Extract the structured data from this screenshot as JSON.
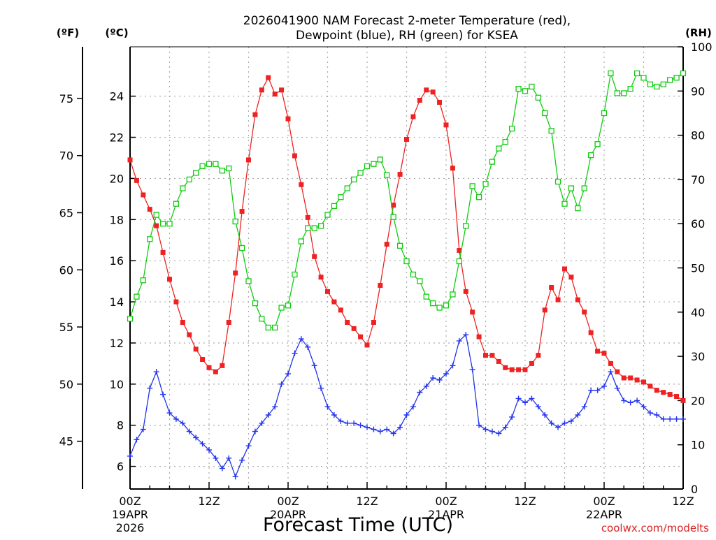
{
  "chart_data": {
    "type": "line",
    "title_line1": "2026041900 NAM Forecast 2-meter Temperature (red),",
    "title_line2": "Dewpoint (blue), RH (green) for KSEA",
    "xlabel": "Forecast Time (UTC)",
    "credit": "coolwx.com/modelts",
    "unit_labels": {
      "fahrenheit": "(ºF)",
      "celsius": "(ºC)",
      "rh": "(RH)"
    },
    "x_axis": {
      "min": 0,
      "max": 84,
      "ticks": [
        {
          "x": 0,
          "label": "00Z",
          "date": "19APR",
          "year": "2026"
        },
        {
          "x": 12,
          "label": "12Z"
        },
        {
          "x": 24,
          "label": "00Z",
          "date": "20APR"
        },
        {
          "x": 36,
          "label": "12Z"
        },
        {
          "x": 48,
          "label": "00Z",
          "date": "21APR"
        },
        {
          "x": 60,
          "label": "12Z"
        },
        {
          "x": 72,
          "label": "00Z",
          "date": "22APR"
        },
        {
          "x": 84,
          "label": "12Z"
        }
      ]
    },
    "y_celsius": {
      "min": 4.9,
      "max": 26.4,
      "ticks": [
        6,
        8,
        10,
        12,
        14,
        16,
        18,
        20,
        22,
        24
      ]
    },
    "y_fahrenheit": {
      "ticks": [
        45,
        50,
        55,
        60,
        65,
        70,
        75
      ]
    },
    "y_rh": {
      "min": 0,
      "max": 100,
      "ticks": [
        0,
        10,
        20,
        30,
        40,
        50,
        60,
        70,
        80,
        90,
        100
      ]
    },
    "grid": true,
    "colors": {
      "temperature": "#ee2222",
      "dewpoint": "#2233ee",
      "rh": "#11cc11",
      "credit": "#dd2222",
      "grid": "#aaaaaa"
    },
    "series": [
      {
        "key": "temperature",
        "axis": "celsius",
        "x": [
          0,
          1,
          2,
          3,
          4,
          5,
          6,
          7,
          8,
          9,
          10,
          11,
          12,
          13,
          14,
          15,
          16,
          17,
          18,
          19,
          20,
          21,
          22,
          23,
          24,
          25,
          26,
          27,
          28,
          29,
          30,
          31,
          32,
          33,
          34,
          35,
          36,
          37,
          38,
          39,
          40,
          41,
          42,
          43,
          44,
          45,
          46,
          47,
          48,
          49,
          50,
          51,
          52,
          53,
          54,
          55,
          56,
          57,
          58,
          59,
          60,
          61,
          62,
          63,
          64,
          65,
          66,
          67,
          68,
          69,
          70,
          71,
          72,
          73,
          74,
          75,
          76,
          77,
          78,
          79,
          80,
          81,
          82,
          83,
          84
        ],
        "values": [
          20.9,
          19.9,
          19.2,
          18.5,
          17.7,
          16.4,
          15.1,
          14.0,
          13.0,
          12.4,
          11.7,
          11.2,
          10.8,
          10.6,
          10.9,
          13.0,
          15.4,
          18.4,
          20.9,
          23.1,
          24.3,
          24.9,
          24.1,
          24.3,
          22.9,
          21.1,
          19.7,
          18.1,
          16.2,
          15.2,
          14.5,
          14.0,
          13.6,
          13.0,
          12.7,
          12.3,
          11.9,
          13.0,
          14.8,
          16.8,
          18.7,
          20.2,
          21.9,
          23.0,
          23.8,
          24.3,
          24.2,
          23.7,
          22.6,
          20.5,
          16.5,
          14.5,
          13.5,
          12.3,
          11.4,
          11.4,
          11.1,
          10.8,
          10.7,
          10.7,
          10.7,
          11.0,
          11.4,
          13.6,
          14.7,
          14.1,
          15.6,
          15.2,
          14.1,
          13.5,
          12.5,
          11.6,
          11.5,
          11.0,
          10.6,
          10.3,
          10.3,
          10.2,
          10.1,
          9.9,
          9.7,
          9.6,
          9.5,
          9.4,
          9.2
        ]
      },
      {
        "key": "dewpoint",
        "axis": "celsius",
        "x": [
          0,
          1,
          2,
          3,
          4,
          5,
          6,
          7,
          8,
          9,
          10,
          11,
          12,
          13,
          14,
          15,
          16,
          17,
          18,
          19,
          20,
          21,
          22,
          23,
          24,
          25,
          26,
          27,
          28,
          29,
          30,
          31,
          32,
          33,
          34,
          35,
          36,
          37,
          38,
          39,
          40,
          41,
          42,
          43,
          44,
          45,
          46,
          47,
          48,
          49,
          50,
          51,
          52,
          53,
          54,
          55,
          56,
          57,
          58,
          59,
          60,
          61,
          62,
          63,
          64,
          65,
          66,
          67,
          68,
          69,
          70,
          71,
          72,
          73,
          74,
          75,
          76,
          77,
          78,
          79,
          80,
          81,
          82,
          83,
          84
        ],
        "values": [
          6.5,
          7.3,
          7.8,
          9.8,
          10.6,
          9.5,
          8.6,
          8.3,
          8.1,
          7.7,
          7.4,
          7.1,
          6.8,
          6.4,
          5.9,
          6.4,
          5.5,
          6.3,
          7.0,
          7.7,
          8.1,
          8.5,
          8.9,
          10.0,
          10.5,
          11.5,
          12.2,
          11.8,
          10.9,
          9.8,
          8.9,
          8.5,
          8.2,
          8.1,
          8.1,
          8.0,
          7.9,
          7.8,
          7.7,
          7.8,
          7.6,
          7.9,
          8.5,
          8.9,
          9.6,
          9.9,
          10.3,
          10.2,
          10.5,
          10.9,
          12.1,
          12.4,
          10.7,
          8.0,
          7.8,
          7.7,
          7.6,
          7.9,
          8.4,
          9.3,
          9.1,
          9.3,
          8.9,
          8.5,
          8.1,
          7.9,
          8.1,
          8.2,
          8.5,
          8.9,
          9.7,
          9.7,
          9.9,
          10.6,
          9.8,
          9.2,
          9.1,
          9.2,
          8.9,
          8.6,
          8.5,
          8.3,
          8.3,
          8.3,
          8.3
        ]
      },
      {
        "key": "rh",
        "axis": "rh",
        "x": [
          0,
          1,
          2,
          3,
          4,
          5,
          6,
          7,
          8,
          9,
          10,
          11,
          12,
          13,
          14,
          15,
          16,
          17,
          18,
          19,
          20,
          21,
          22,
          23,
          24,
          25,
          26,
          27,
          28,
          29,
          30,
          31,
          32,
          33,
          34,
          35,
          36,
          37,
          38,
          39,
          40,
          41,
          42,
          43,
          44,
          45,
          46,
          47,
          48,
          49,
          50,
          51,
          52,
          53,
          54,
          55,
          56,
          57,
          58,
          59,
          60,
          61,
          62,
          63,
          64,
          65,
          66,
          67,
          68,
          69,
          70,
          71,
          72,
          73,
          74,
          75,
          76,
          77,
          78,
          79,
          80,
          81,
          82,
          83,
          84
        ],
        "values": [
          38.5,
          43.5,
          47.2,
          56.5,
          62,
          60,
          60,
          64.5,
          68,
          70,
          71.5,
          73,
          73.5,
          73.5,
          72,
          72.5,
          60.5,
          54.5,
          47,
          42,
          38.5,
          36.5,
          36.5,
          41,
          41.5,
          48.5,
          56,
          59,
          59,
          59.5,
          62,
          64,
          66,
          68,
          70,
          71.5,
          73,
          73.5,
          74.5,
          71,
          61.5,
          55,
          51.5,
          48.5,
          47,
          43.5,
          42,
          41,
          41.5,
          44,
          51.5,
          59.5,
          68.5,
          66,
          69,
          74,
          77,
          78.5,
          81.5,
          90.5,
          90,
          91,
          88.5,
          85,
          81,
          69.5,
          64.5,
          68,
          63.5,
          68,
          75.5,
          78,
          85,
          94,
          89.5,
          89.5,
          90.5,
          94,
          93,
          91.5,
          91,
          91.5,
          92.5,
          93,
          94
        ]
      }
    ]
  }
}
